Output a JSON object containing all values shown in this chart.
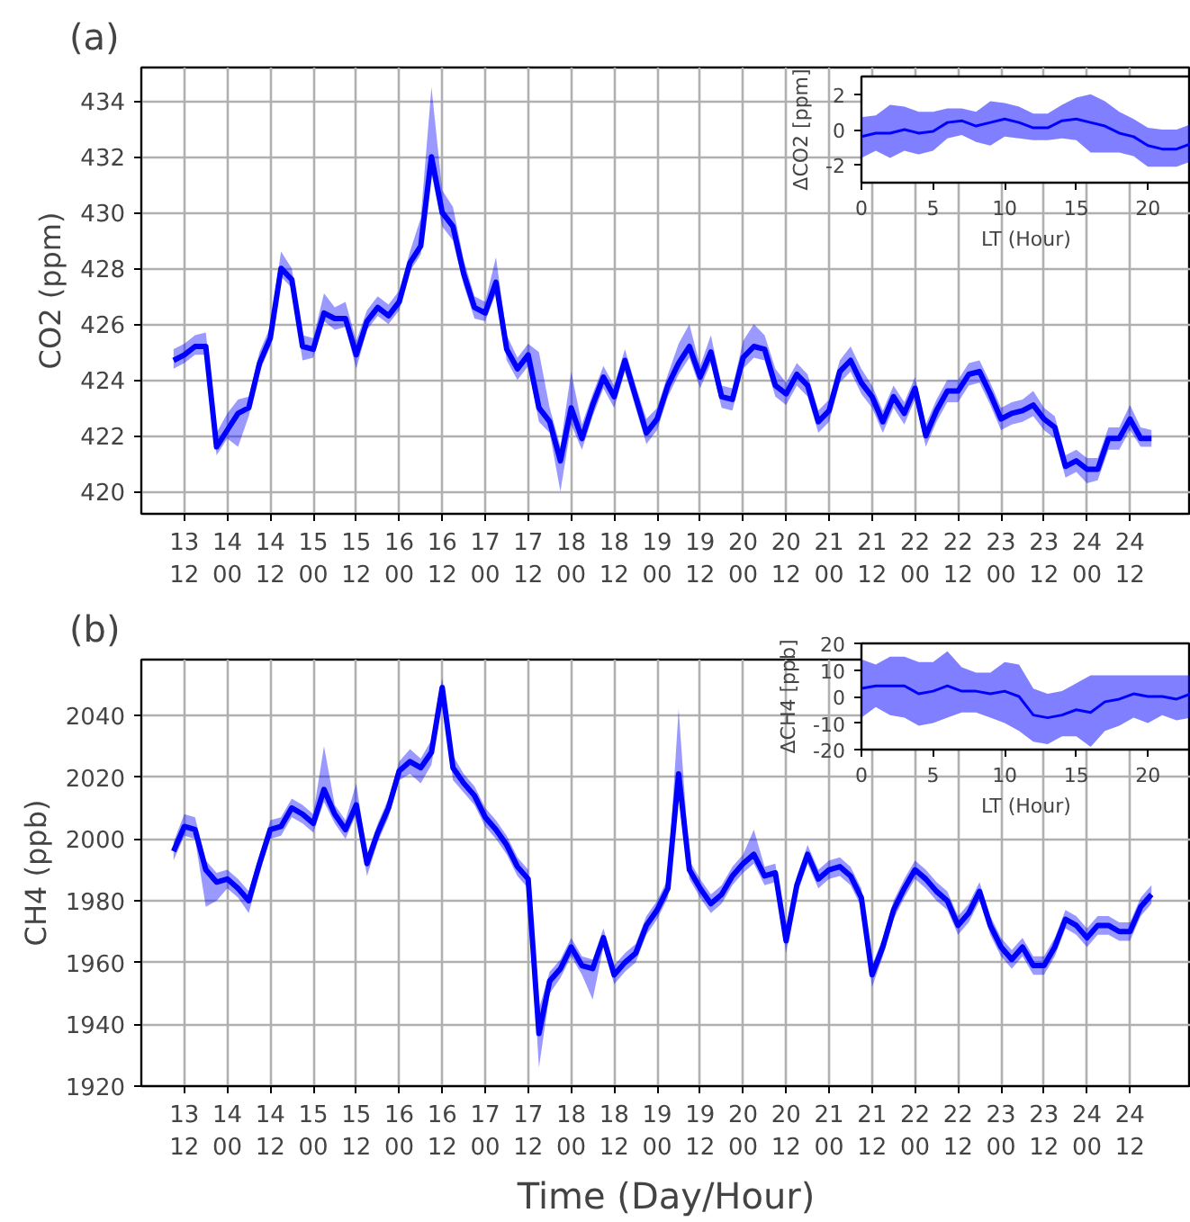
{
  "chart_data": [
    {
      "type": "line",
      "title": "(a)",
      "ylabel": "CO2 (ppm)",
      "ylim": [
        419.2,
        435.2
      ],
      "grid": true,
      "categories": [
        null,
        "13\n12",
        null,
        null,
        null,
        "14\n00",
        null,
        null,
        null,
        "14\n12",
        null,
        null,
        null,
        "15\n00",
        null,
        null,
        null,
        "15\n12",
        null,
        null,
        null,
        "16\n00",
        null,
        null,
        null,
        "16\n12",
        null,
        null,
        null,
        "17\n00",
        null,
        null,
        null,
        "17\n12",
        null,
        null,
        null,
        "18\n00",
        null,
        null,
        null,
        "18\n12",
        null,
        null,
        null,
        "19\n00",
        null,
        null,
        null,
        "19\n12",
        null,
        null,
        null,
        "20\n00",
        null,
        null,
        null,
        "20\n12",
        null,
        null,
        null,
        "21\n00",
        null,
        null,
        null,
        "21\n12",
        null,
        null,
        null,
        "22\n00",
        null,
        null,
        null,
        "22\n12",
        null,
        null,
        null,
        "23\n00",
        null,
        null,
        null,
        "23\n12",
        null,
        null,
        null,
        "24\n00",
        null,
        null,
        null,
        "24\n12",
        null,
        null
      ],
      "yticks": [
        420,
        422,
        424,
        426,
        428,
        430,
        432,
        434
      ],
      "series": [
        {
          "color": "#0000ff",
          "values": [
            424.7,
            424.9,
            425.2,
            425.2,
            421.6,
            422.2,
            422.8,
            423.0,
            424.6,
            425.5,
            428.0,
            427.6,
            425.2,
            425.1,
            426.4,
            426.2,
            426.2,
            424.9,
            426.1,
            426.6,
            426.3,
            426.8,
            428.2,
            428.8,
            432.0,
            430.0,
            429.5,
            427.8,
            426.6,
            426.4,
            427.5,
            425.1,
            424.4,
            424.9,
            423.0,
            422.5,
            421.1,
            423.0,
            421.9,
            423.1,
            424.1,
            423.4,
            424.7,
            423.4,
            422.1,
            422.6,
            423.8,
            424.6,
            425.2,
            424.1,
            425.0,
            423.4,
            423.3,
            424.8,
            425.2,
            425.1,
            423.8,
            423.5,
            424.2,
            423.8,
            422.5,
            422.9,
            424.3,
            424.7,
            423.9,
            423.4,
            422.5,
            423.4,
            422.8,
            423.7,
            422.0,
            422.9,
            423.6,
            423.6,
            424.2,
            424.3,
            423.5,
            422.6,
            422.8,
            422.9,
            423.1,
            422.6,
            422.3,
            420.9,
            421.1,
            420.8,
            420.8,
            421.9,
            421.9,
            422.6,
            421.9,
            421.9
          ],
          "lower": [
            424.4,
            424.6,
            424.9,
            424.9,
            421.3,
            421.9,
            421.6,
            422.7,
            424.3,
            425.2,
            427.7,
            427.3,
            424.7,
            424.8,
            426.1,
            425.8,
            425.9,
            424.4,
            425.8,
            426.3,
            426.0,
            426.5,
            427.9,
            428.5,
            431.4,
            429.5,
            429.0,
            427.4,
            426.2,
            426.1,
            427.1,
            424.7,
            424.0,
            424.5,
            422.5,
            422.1,
            420.0,
            422.4,
            421.5,
            422.7,
            423.7,
            423.0,
            424.3,
            423.0,
            421.7,
            422.2,
            423.4,
            424.2,
            424.8,
            423.7,
            424.6,
            423.0,
            422.9,
            424.4,
            424.8,
            424.7,
            423.4,
            423.1,
            423.8,
            423.4,
            422.1,
            422.5,
            423.9,
            424.3,
            423.5,
            423.0,
            422.1,
            423.0,
            422.4,
            423.3,
            421.6,
            422.5,
            423.2,
            423.2,
            423.8,
            423.9,
            423.1,
            422.2,
            422.4,
            422.5,
            422.7,
            422.2,
            421.9,
            420.5,
            420.7,
            420.3,
            420.4,
            421.5,
            421.5,
            422.2,
            421.6,
            421.6
          ],
          "upper": [
            425.1,
            425.3,
            425.6,
            425.7,
            422.1,
            422.8,
            423.3,
            423.4,
            425.0,
            425.9,
            428.6,
            428.0,
            425.6,
            425.5,
            427.1,
            426.6,
            426.8,
            425.4,
            426.5,
            427.0,
            426.7,
            427.2,
            428.6,
            429.8,
            434.5,
            430.8,
            430.2,
            428.3,
            427.0,
            426.8,
            428.4,
            425.6,
            424.8,
            425.3,
            425.0,
            423.0,
            421.6,
            424.3,
            422.4,
            423.5,
            424.5,
            423.8,
            425.1,
            423.8,
            422.6,
            423.0,
            424.2,
            425.3,
            426.0,
            424.5,
            425.6,
            423.8,
            423.7,
            425.4,
            426.0,
            425.6,
            424.4,
            423.9,
            424.6,
            424.2,
            422.9,
            423.3,
            424.7,
            425.2,
            424.4,
            423.8,
            422.9,
            423.8,
            423.2,
            424.1,
            422.4,
            423.3,
            424.0,
            424.0,
            424.6,
            424.7,
            423.9,
            423.0,
            423.2,
            423.3,
            423.6,
            423.0,
            422.7,
            421.3,
            421.5,
            421.2,
            421.2,
            422.3,
            422.3,
            423.1,
            422.3,
            422.2
          ]
        }
      ]
    },
    {
      "type": "line",
      "xlabel": "LT (Hour)",
      "ylabel": "ΔCO2 [ppm]",
      "xlim": [
        0,
        23
      ],
      "ylim": [
        -3,
        3
      ],
      "xticks": [
        0,
        5,
        10,
        15,
        20
      ],
      "yticks": [
        -2,
        0,
        2
      ],
      "series": [
        {
          "color": "#0000ff",
          "x": [
            0,
            1,
            2,
            3,
            4,
            5,
            6,
            7,
            8,
            9,
            10,
            11,
            12,
            13,
            14,
            15,
            16,
            17,
            18,
            19,
            20,
            21,
            22,
            23
          ],
          "values": [
            -0.4,
            -0.2,
            -0.2,
            0.0,
            -0.2,
            -0.1,
            0.4,
            0.5,
            0.2,
            0.4,
            0.6,
            0.4,
            0.1,
            0.1,
            0.5,
            0.6,
            0.4,
            0.2,
            -0.2,
            -0.4,
            -0.9,
            -1.1,
            -1.1,
            -0.8
          ],
          "lower": [
            -1.6,
            -1.2,
            -1.6,
            -1.2,
            -1.4,
            -1.2,
            -0.5,
            -0.3,
            -0.7,
            -0.9,
            -0.4,
            -0.5,
            -0.6,
            -0.6,
            -0.5,
            -0.6,
            -1.3,
            -1.3,
            -1.3,
            -1.5,
            -2.1,
            -2.1,
            -2.1,
            -1.8
          ],
          "upper": [
            0.7,
            0.8,
            1.4,
            1.3,
            1.0,
            1.0,
            1.2,
            1.2,
            1.0,
            1.6,
            1.5,
            1.3,
            0.9,
            0.9,
            1.4,
            1.8,
            2.0,
            1.6,
            1.0,
            0.6,
            0.1,
            0.0,
            0.0,
            0.3
          ]
        }
      ]
    },
    {
      "type": "line",
      "title": "(b)",
      "xlabel": "Time (Day/Hour)",
      "ylabel": "CH4 (ppb)",
      "ylim": [
        1920,
        2058
      ],
      "grid": true,
      "categories": [
        null,
        "13\n12",
        null,
        null,
        null,
        "14\n00",
        null,
        null,
        null,
        "14\n12",
        null,
        null,
        null,
        "15\n00",
        null,
        null,
        null,
        "15\n12",
        null,
        null,
        null,
        "16\n00",
        null,
        null,
        null,
        "16\n12",
        null,
        null,
        null,
        "17\n00",
        null,
        null,
        null,
        "17\n12",
        null,
        null,
        null,
        "18\n00",
        null,
        null,
        null,
        "18\n12",
        null,
        null,
        null,
        "19\n00",
        null,
        null,
        null,
        "19\n12",
        null,
        null,
        null,
        "20\n00",
        null,
        null,
        null,
        "20\n12",
        null,
        null,
        null,
        "21\n00",
        null,
        null,
        null,
        "21\n12",
        null,
        null,
        null,
        "22\n00",
        null,
        null,
        null,
        "22\n12",
        null,
        null,
        null,
        "23\n00",
        null,
        null,
        null,
        "23\n12",
        null,
        null,
        null,
        "24\n00",
        null,
        null,
        null,
        "24\n12",
        null,
        null
      ],
      "yticks": [
        1920,
        1940,
        1960,
        1980,
        2000,
        2020,
        2040
      ],
      "series": [
        {
          "color": "#0000ff",
          "values": [
            1996,
            2004,
            2003,
            1990,
            1986,
            1987,
            1984,
            1980,
            1992,
            2003,
            2004,
            2010,
            2008,
            2005,
            2016,
            2008,
            2003,
            2011,
            1992,
            2002,
            2010,
            2022,
            2025,
            2023,
            2028,
            2049,
            2023,
            2018,
            2014,
            2007,
            2003,
            1998,
            1991,
            1987,
            1937,
            1954,
            1958,
            1965,
            1959,
            1958,
            1968,
            1956,
            1960,
            1963,
            1972,
            1977,
            1984,
            2021,
            1990,
            1984,
            1979,
            1982,
            1988,
            1992,
            1995,
            1988,
            1989,
            1967,
            1985,
            1995,
            1987,
            1990,
            1991,
            1988,
            1981,
            1956,
            1965,
            1977,
            1984,
            1990,
            1987,
            1983,
            1980,
            1972,
            1976,
            1983,
            1972,
            1965,
            1961,
            1965,
            1959,
            1959,
            1965,
            1974,
            1972,
            1968,
            1972,
            1972,
            1970,
            1970,
            1978,
            1982
          ],
          "lower": [
            1993,
            2001,
            2000,
            1978,
            1980,
            1984,
            1981,
            1976,
            1989,
            2000,
            2001,
            2007,
            2005,
            2002,
            2012,
            2005,
            2000,
            2008,
            1988,
            1999,
            2007,
            2019,
            2021,
            2018,
            2024,
            2046,
            2019,
            2015,
            2011,
            2004,
            2000,
            1995,
            1988,
            1984,
            1926,
            1950,
            1955,
            1962,
            1956,
            1948,
            1965,
            1953,
            1957,
            1960,
            1969,
            1974,
            1981,
            2016,
            1987,
            1981,
            1976,
            1979,
            1985,
            1989,
            1992,
            1985,
            1986,
            1963,
            1982,
            1992,
            1984,
            1987,
            1988,
            1985,
            1978,
            1952,
            1962,
            1974,
            1981,
            1987,
            1984,
            1980,
            1977,
            1969,
            1973,
            1980,
            1969,
            1962,
            1958,
            1962,
            1956,
            1956,
            1962,
            1971,
            1969,
            1965,
            1969,
            1969,
            1967,
            1967,
            1975,
            1979
          ],
          "upper": [
            1999,
            2008,
            2007,
            1993,
            1989,
            1990,
            1987,
            1983,
            1995,
            2006,
            2007,
            2013,
            2011,
            2008,
            2030,
            2011,
            2006,
            2018,
            1995,
            2005,
            2013,
            2025,
            2029,
            2026,
            2032,
            2052,
            2027,
            2021,
            2017,
            2010,
            2006,
            2001,
            1994,
            1990,
            1945,
            1957,
            1961,
            1968,
            1962,
            1961,
            1971,
            1959,
            1963,
            1966,
            1975,
            1980,
            1987,
            2042,
            1993,
            1987,
            1982,
            1985,
            1991,
            1995,
            2003,
            1991,
            1992,
            1970,
            1988,
            1998,
            1990,
            1993,
            1994,
            1991,
            1984,
            1959,
            1968,
            1980,
            1987,
            1993,
            1990,
            1986,
            1983,
            1975,
            1979,
            1986,
            1975,
            1968,
            1964,
            1968,
            1962,
            1962,
            1968,
            1977,
            1975,
            1971,
            1975,
            1975,
            1973,
            1973,
            1981,
            1985
          ]
        }
      ]
    },
    {
      "type": "line",
      "xlabel": "LT (Hour)",
      "ylabel": "ΔCH4 [ppb]",
      "xlim": [
        0,
        23
      ],
      "ylim": [
        -20,
        20
      ],
      "xticks": [
        0,
        5,
        10,
        15,
        20
      ],
      "yticks": [
        -20,
        -10,
        0,
        10,
        20
      ],
      "series": [
        {
          "color": "#0000ff",
          "x": [
            0,
            1,
            2,
            3,
            4,
            5,
            6,
            7,
            8,
            9,
            10,
            11,
            12,
            13,
            14,
            15,
            16,
            17,
            18,
            19,
            20,
            21,
            22,
            23
          ],
          "values": [
            3,
            4,
            4,
            4,
            1,
            2,
            4,
            2,
            2,
            1,
            2,
            0,
            -7,
            -8,
            -7,
            -5,
            -6,
            -2,
            -1,
            1,
            0,
            0,
            -1,
            1
          ],
          "lower": [
            -8,
            -4,
            -7,
            -8,
            -11,
            -10,
            -8,
            -6,
            -6,
            -8,
            -10,
            -13,
            -17,
            -18,
            -15,
            -15,
            -19,
            -13,
            -11,
            -8,
            -10,
            -7,
            -9,
            -8
          ],
          "upper": [
            14,
            12,
            15,
            15,
            13,
            13,
            17,
            11,
            9,
            9,
            13,
            12,
            3,
            1,
            2,
            5,
            8,
            8,
            8,
            8,
            8,
            8,
            8,
            8
          ]
        }
      ]
    }
  ]
}
